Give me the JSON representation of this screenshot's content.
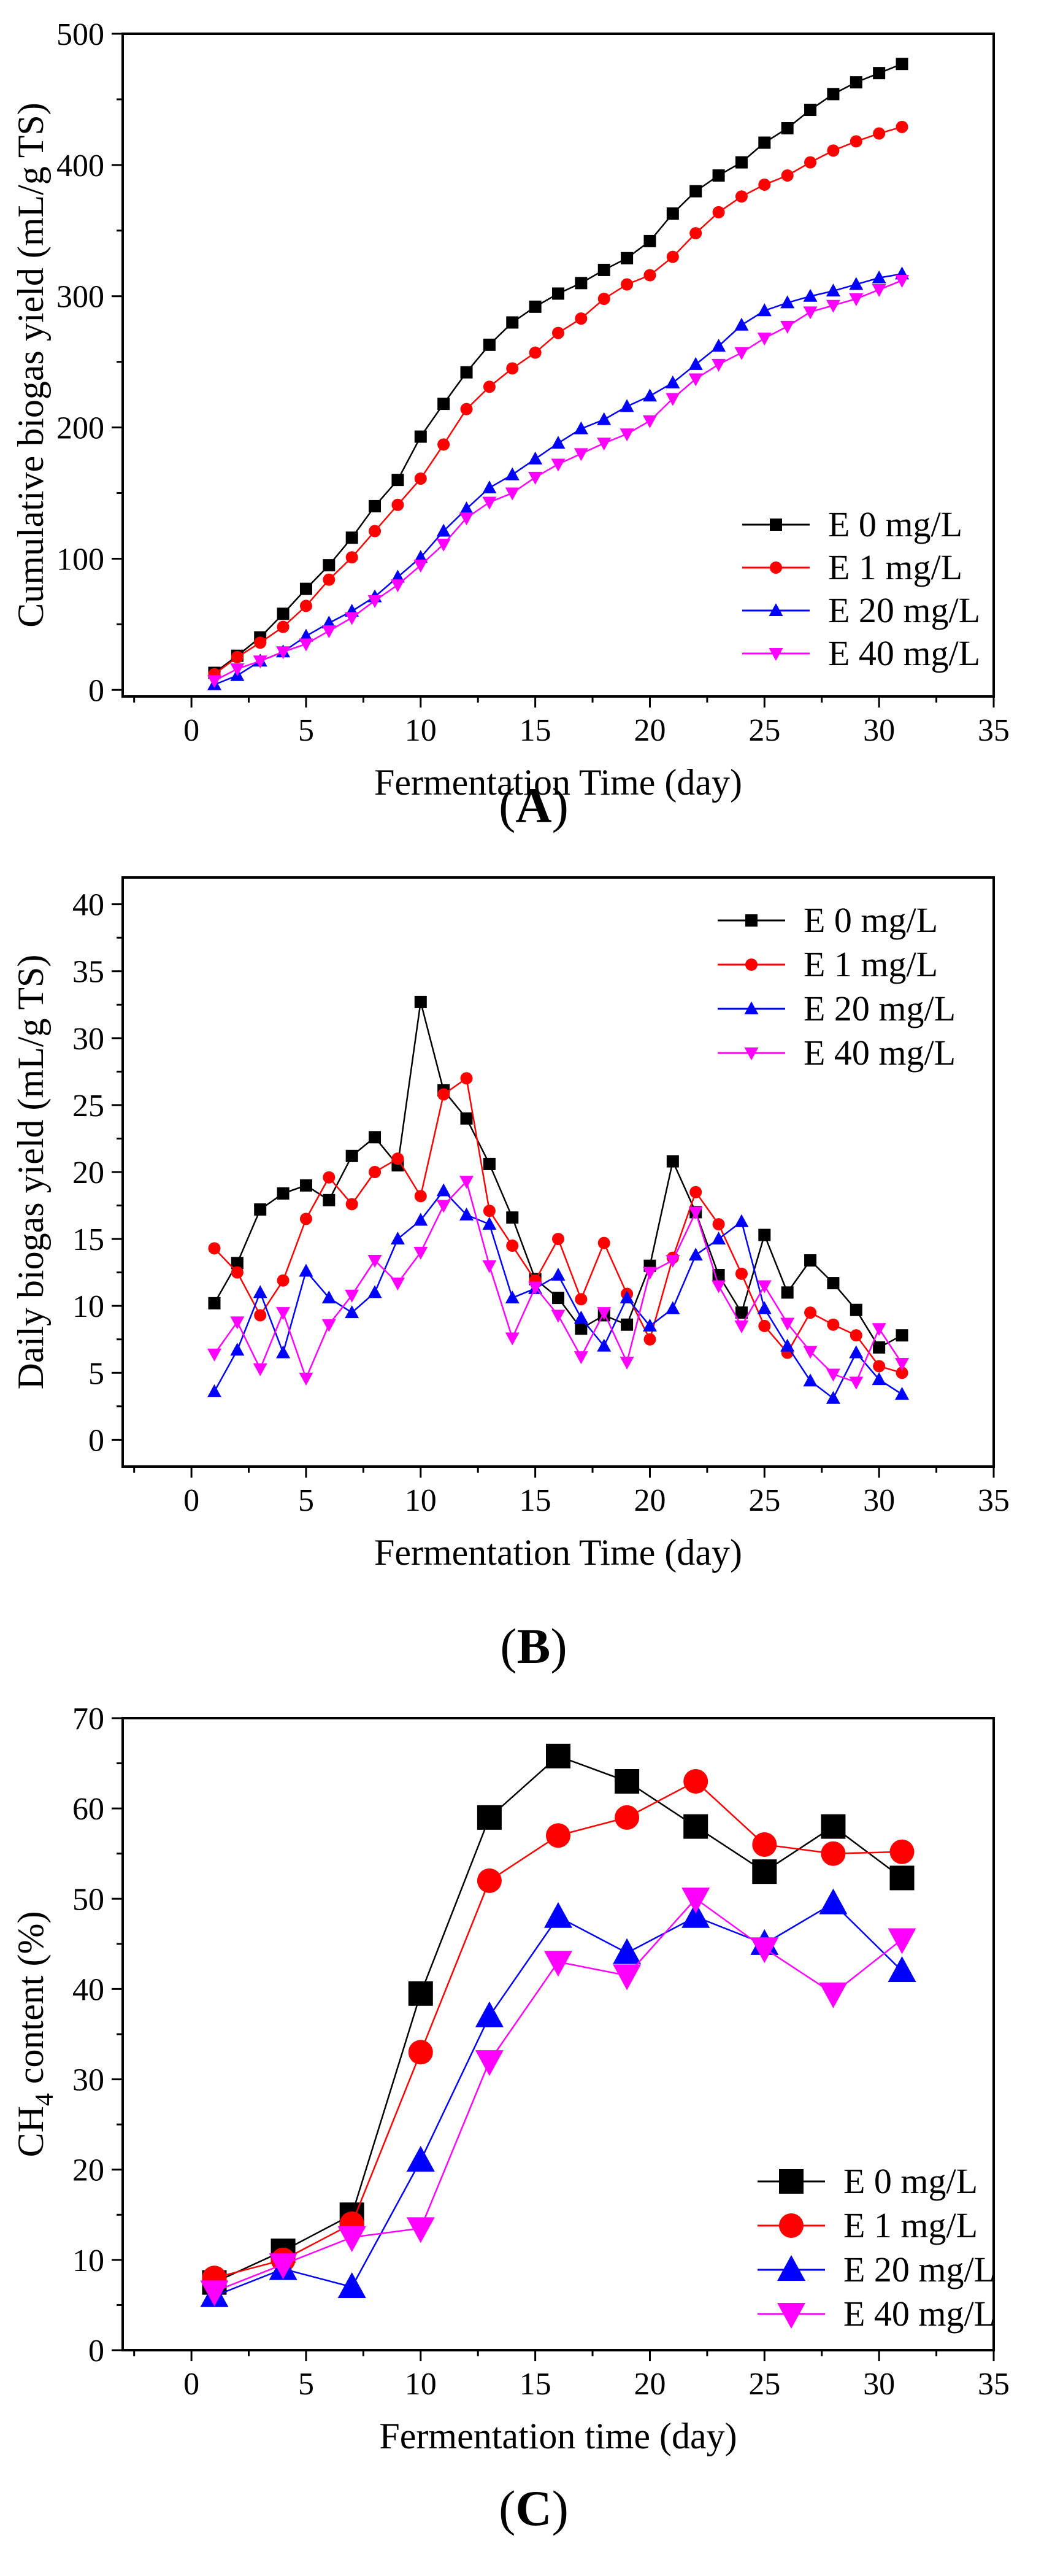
{
  "colors": {
    "E 0 mg/L": "#000000",
    "E 1 mg/L": "#ff0000",
    "E 20 mg/L": "#0000ff",
    "E 40 mg/L": "#ff00ff"
  },
  "chart_data": [
    {
      "id": "A",
      "type": "line",
      "panel_label": "A",
      "title": "",
      "xlabel": "Fermentation Time (day)",
      "ylabel": "Cumulative biogas yield (mL/g TS)",
      "xlim": [
        -3,
        35
      ],
      "ylim": [
        -5,
        500
      ],
      "xticks": [
        0,
        5,
        10,
        15,
        20,
        25,
        30,
        35
      ],
      "yticks": [
        0,
        100,
        200,
        300,
        400,
        500
      ],
      "legend_position": "bottom-right",
      "x": [
        1,
        2,
        3,
        4,
        5,
        6,
        7,
        8,
        9,
        10,
        11,
        12,
        13,
        14,
        15,
        16,
        17,
        18,
        19,
        20,
        21,
        22,
        23,
        24,
        25,
        26,
        27,
        28,
        29,
        30,
        31
      ],
      "series": [
        {
          "name": "E 0 mg/L",
          "display": "E  0 mg/L",
          "marker": "square",
          "values": [
            13,
            26,
            40,
            58,
            77,
            95,
            116,
            140,
            160,
            193,
            218,
            242,
            263,
            280,
            292,
            302,
            310,
            320,
            329,
            342,
            363,
            380,
            392,
            402,
            417,
            428,
            442,
            454,
            463,
            470,
            477
          ]
        },
        {
          "name": "E 1 mg/L",
          "display": "E  1 mg/L",
          "marker": "circle",
          "values": [
            12,
            25,
            36,
            48,
            64,
            84,
            101,
            121,
            141,
            161,
            187,
            214,
            231,
            245,
            257,
            272,
            283,
            298,
            309,
            316,
            330,
            348,
            364,
            376,
            385,
            392,
            402,
            411,
            418,
            424,
            429
          ]
        },
        {
          "name": "E 20 mg/L",
          "display": "E 20 mg/L",
          "marker": "triangle-up",
          "values": [
            4,
            11,
            22,
            29,
            41,
            51,
            60,
            71,
            86,
            101,
            121,
            138,
            154,
            164,
            176,
            188,
            199,
            206,
            216,
            224,
            234,
            248,
            262,
            278,
            289,
            295,
            300,
            304,
            309,
            314,
            317
          ]
        },
        {
          "name": "E 40 mg/L",
          "display": "E 40 mg/L",
          "marker": "triangle-down",
          "values": [
            7,
            16,
            22,
            29,
            35,
            45,
            55,
            68,
            80,
            95,
            111,
            131,
            143,
            150,
            162,
            172,
            180,
            188,
            195,
            205,
            222,
            237,
            248,
            257,
            268,
            277,
            288,
            293,
            298,
            305,
            312
          ]
        }
      ]
    },
    {
      "id": "B",
      "type": "line",
      "panel_label": "B",
      "title": "",
      "xlabel": "Fermentation Time (day)",
      "ylabel": "Daily biogas yield (mL/g TS)",
      "xlim": [
        -3,
        35
      ],
      "ylim": [
        -2,
        42
      ],
      "xticks": [
        0,
        5,
        10,
        15,
        20,
        25,
        30,
        35
      ],
      "yticks": [
        0,
        5,
        10,
        15,
        20,
        25,
        30,
        35,
        40
      ],
      "legend_position": "top-right",
      "x": [
        1,
        2,
        3,
        4,
        5,
        6,
        7,
        8,
        9,
        10,
        11,
        12,
        13,
        14,
        15,
        16,
        17,
        18,
        19,
        20,
        21,
        22,
        23,
        24,
        25,
        26,
        27,
        28,
        29,
        30,
        31
      ],
      "series": [
        {
          "name": "E 0 mg/L",
          "display": "E  0 mg/L",
          "marker": "square",
          "values": [
            10.2,
            13.2,
            17.2,
            18.4,
            19.0,
            17.9,
            21.2,
            22.6,
            20.5,
            32.7,
            26.1,
            24.0,
            20.6,
            16.6,
            12.0,
            10.6,
            8.3,
            9.3,
            8.6,
            13.0,
            20.8,
            17.0,
            12.3,
            9.5,
            15.3,
            11.0,
            13.4,
            11.7,
            9.7,
            6.9,
            7.8
          ]
        },
        {
          "name": "E 1 mg/L",
          "display": "E  1 mg/L",
          "marker": "circle",
          "values": [
            14.3,
            12.5,
            9.3,
            11.9,
            16.5,
            19.6,
            17.6,
            20.0,
            21.0,
            18.2,
            25.8,
            27.0,
            17.1,
            14.5,
            11.9,
            15.0,
            10.5,
            14.7,
            10.9,
            7.5,
            13.6,
            18.5,
            16.1,
            12.4,
            8.5,
            6.5,
            9.5,
            8.6,
            7.8,
            5.5,
            5.0
          ]
        },
        {
          "name": "E 20 mg/L",
          "display": "E 20 mg/L",
          "marker": "triangle-up",
          "values": [
            3.6,
            6.7,
            11.0,
            6.5,
            12.6,
            10.6,
            9.5,
            11.0,
            15.0,
            16.4,
            18.6,
            16.8,
            16.1,
            10.6,
            11.3,
            12.3,
            9.1,
            7.0,
            10.6,
            8.5,
            9.8,
            13.8,
            15.0,
            16.3,
            9.8,
            7.0,
            4.4,
            3.1,
            6.5,
            4.5,
            3.4
          ]
        },
        {
          "name": "E 40 mg/L",
          "display": "E 40 mg/L",
          "marker": "triangle-down",
          "values": [
            6.4,
            8.8,
            5.3,
            9.5,
            4.6,
            8.6,
            10.8,
            13.4,
            11.7,
            14.0,
            17.5,
            19.3,
            13.0,
            7.6,
            11.4,
            9.3,
            6.2,
            9.5,
            5.8,
            12.5,
            13.4,
            17.0,
            11.5,
            8.5,
            11.5,
            8.7,
            6.6,
            4.9,
            4.3,
            8.3,
            5.7
          ]
        }
      ]
    },
    {
      "id": "C",
      "type": "line",
      "panel_label": "C",
      "title": "",
      "xlabel": "Fermentation time (day)",
      "ylabel_parts": [
        "CH",
        "4",
        " content (%)"
      ],
      "xlim": [
        -3,
        35
      ],
      "ylim": [
        0,
        70
      ],
      "xticks": [
        0,
        5,
        10,
        15,
        20,
        25,
        30,
        35
      ],
      "yticks": [
        0,
        10,
        20,
        30,
        40,
        50,
        60,
        70
      ],
      "legend_position": "bottom-right",
      "x": [
        1,
        4,
        7,
        10,
        13,
        16,
        19,
        22,
        25,
        28,
        31
      ],
      "series": [
        {
          "name": "E 0 mg/L",
          "display": "E   0 mg/L",
          "marker": "square",
          "values": [
            7.5,
            11.0,
            15.0,
            39.5,
            59.0,
            65.8,
            63.0,
            58.0,
            53.0,
            58.0,
            52.3
          ]
        },
        {
          "name": "E 1 mg/L",
          "display": "E   1 mg/L",
          "marker": "circle",
          "values": [
            8.0,
            10.0,
            14.0,
            33.0,
            52.0,
            57.0,
            59.0,
            63.0,
            56.0,
            55.0,
            55.2
          ]
        },
        {
          "name": "E 20 mg/L",
          "display": "E 20 mg/L",
          "marker": "triangle-up",
          "values": [
            6.0,
            9.0,
            7.0,
            21.0,
            37.0,
            48.0,
            44.0,
            48.0,
            45.0,
            49.5,
            42.0
          ]
        },
        {
          "name": "E 40 mg/L",
          "display": "E 40 mg/L",
          "marker": "triangle-down",
          "values": [
            6.5,
            9.5,
            12.5,
            13.5,
            32.0,
            43.0,
            41.5,
            50.0,
            44.5,
            39.5,
            45.5
          ]
        }
      ]
    }
  ]
}
